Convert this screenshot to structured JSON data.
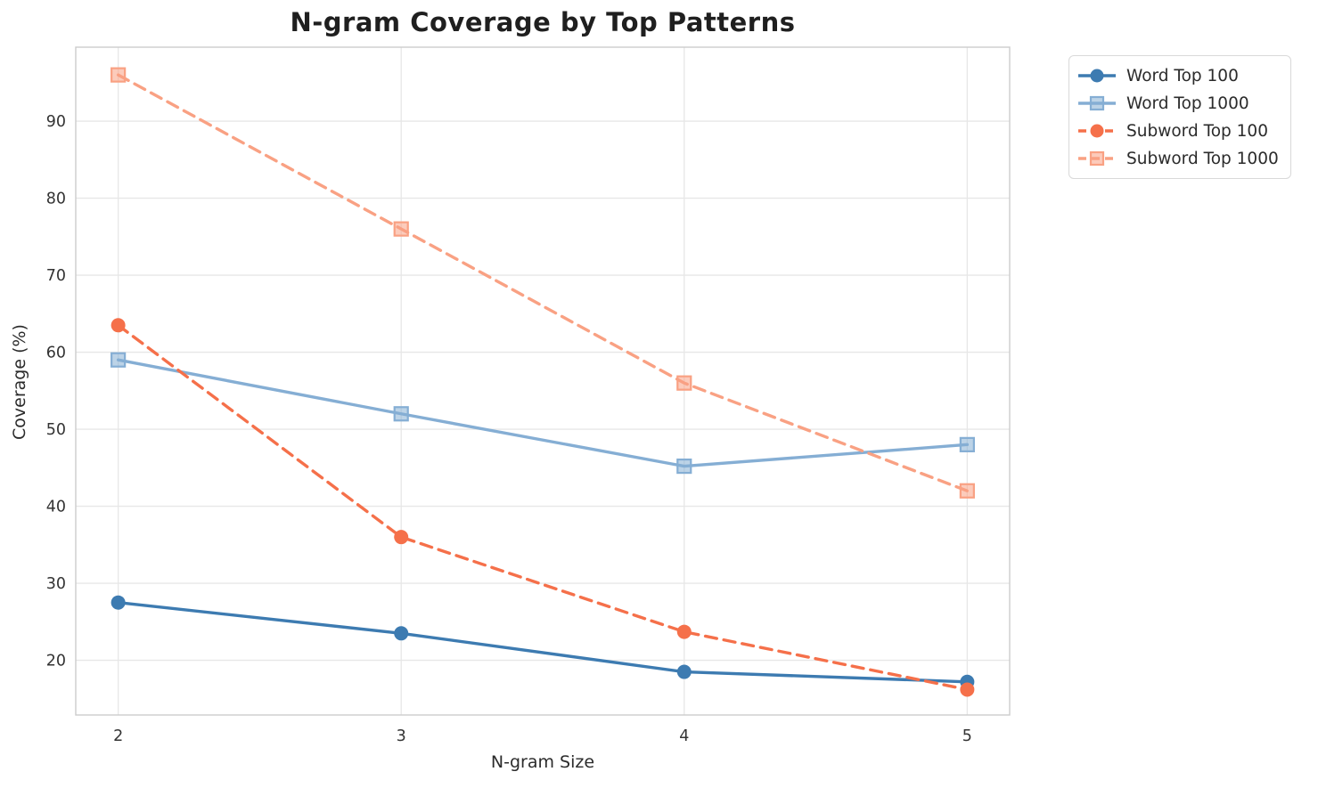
{
  "title": "N-gram Coverage by Top Patterns",
  "chart_data": {
    "type": "line",
    "title": "N-gram Coverage by Top Patterns",
    "xlabel": "N-gram Size",
    "ylabel": "Coverage (%)",
    "x": [
      2,
      3,
      4,
      5
    ],
    "xticklabels": [
      "2",
      "3",
      "4",
      "5"
    ],
    "yticks": [
      20,
      30,
      40,
      50,
      60,
      70,
      80,
      90
    ],
    "xlim": [
      1.85,
      5.15
    ],
    "ylim": [
      12.9,
      99.6
    ],
    "grid": true,
    "legend_position": "outside-upper-right",
    "series": [
      {
        "name": "Word Top 100",
        "values": [
          27.5,
          23.5,
          18.5,
          17.2
        ],
        "color": "#3d7bb1",
        "marker": "circle",
        "line": "solid"
      },
      {
        "name": "Word Top 1000",
        "values": [
          59.0,
          52.0,
          45.2,
          48.0
        ],
        "color": "#85aed4",
        "marker": "square",
        "line": "solid"
      },
      {
        "name": "Subword Top 100",
        "values": [
          63.5,
          36.0,
          23.7,
          16.2
        ],
        "color": "#f5704a",
        "marker": "circle",
        "line": "dashed"
      },
      {
        "name": "Subword Top 1000",
        "values": [
          96.0,
          76.0,
          56.0,
          42.0
        ],
        "color": "#f9a183",
        "marker": "square",
        "line": "dashed"
      }
    ],
    "colors": {
      "grid": "#e7e7e7",
      "spine": "#cccccc",
      "text": "#2b2b2b",
      "background": "#ffffff"
    }
  }
}
